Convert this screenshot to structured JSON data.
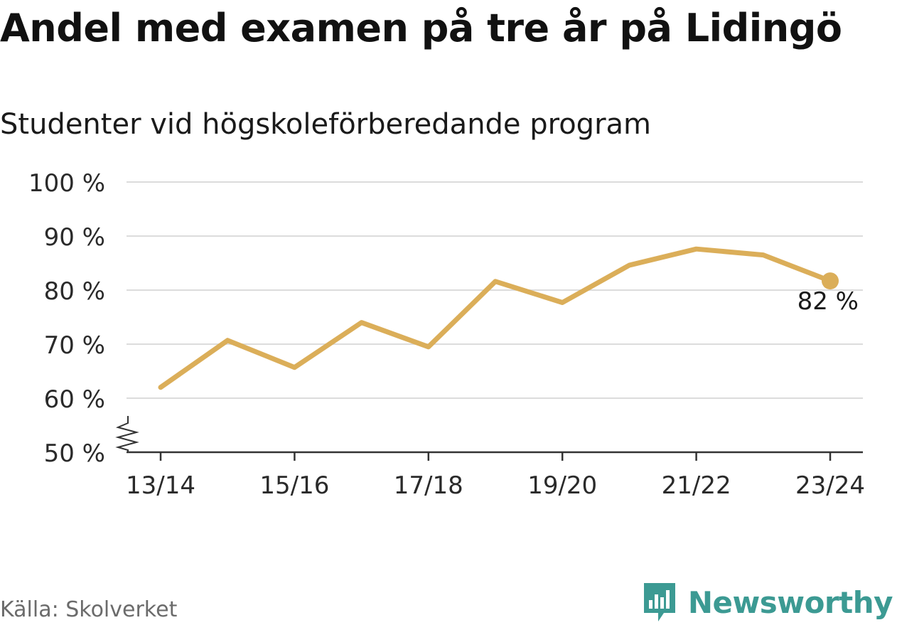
{
  "header": {
    "title": "Andel med examen på tre år på Lidingö",
    "subtitle": "Studenter vid högskoleförberedande program"
  },
  "chart_data": {
    "type": "line",
    "title": "Andel med examen på tre år på Lidingö",
    "subtitle": "Studenter vid högskoleförberedande program",
    "x": [
      "13/14",
      "14/15",
      "15/16",
      "16/17",
      "17/18",
      "18/19",
      "19/20",
      "20/21",
      "21/22",
      "22/23",
      "23/24"
    ],
    "x_tick_labels": [
      "13/14",
      "15/16",
      "17/18",
      "19/20",
      "21/22",
      "23/24"
    ],
    "series": [
      {
        "values": [
          62,
          70.7,
          65.7,
          74,
          69.5,
          81.6,
          77.7,
          84.6,
          87.6,
          86.5,
          81.7
        ]
      }
    ],
    "ylim": [
      50,
      100
    ],
    "y_ticks": [
      50,
      60,
      70,
      80,
      90,
      100
    ],
    "y_tick_labels": [
      "50 %",
      "60 %",
      "70 %",
      "80 %",
      "90 %",
      "100 %"
    ],
    "axis_break": true,
    "grid": true,
    "end_label": "82 %",
    "line_color": "#dbae59",
    "grid_color": "#dcdcdc",
    "axis_color": "#333333"
  },
  "footer": {
    "source": "Källa: Skolverket",
    "brand": "Newsworthy",
    "brand_color": "#3c9a93",
    "brand_icon": "bar-chart-speech-bubble-icon"
  }
}
